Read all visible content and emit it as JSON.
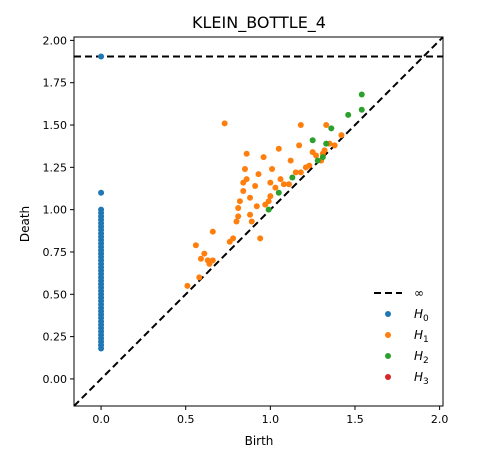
{
  "chart_data": {
    "type": "scatter",
    "title": "KLEIN_BOTTLE_4",
    "xlabel": "Birth",
    "ylabel": "Death",
    "xlim": [
      -0.16,
      2.02
    ],
    "ylim": [
      -0.16,
      2.02
    ],
    "xticks": [
      {
        "value": 0.0,
        "label": "0.0"
      },
      {
        "value": 0.5,
        "label": "0.5"
      },
      {
        "value": 1.0,
        "label": "1.0"
      },
      {
        "value": 1.5,
        "label": "1.5"
      },
      {
        "value": 2.0,
        "label": "2.0"
      }
    ],
    "yticks": [
      {
        "value": 0.0,
        "label": "0.00"
      },
      {
        "value": 0.25,
        "label": "0.25"
      },
      {
        "value": 0.5,
        "label": "0.50"
      },
      {
        "value": 0.75,
        "label": "0.75"
      },
      {
        "value": 1.0,
        "label": "1.00"
      },
      {
        "value": 1.25,
        "label": "1.25"
      },
      {
        "value": 1.5,
        "label": "1.50"
      },
      {
        "value": 1.75,
        "label": "1.75"
      },
      {
        "value": 2.0,
        "label": "2.00"
      }
    ],
    "infinity_line": {
      "y": 1.905,
      "color": "#000000"
    },
    "diagonal_color": "#000000",
    "grid": false,
    "legend_position": "bottom-right",
    "legend": [
      {
        "key": "inf",
        "label": "∞",
        "kind": "dashed-line",
        "color": "#000000"
      },
      {
        "key": "h0",
        "label_main": "H",
        "label_sub": "0",
        "kind": "dot",
        "color": "#1f77b4"
      },
      {
        "key": "h1",
        "label_main": "H",
        "label_sub": "1",
        "kind": "dot",
        "color": "#ff7f0e"
      },
      {
        "key": "h2",
        "label_main": "H",
        "label_sub": "2",
        "kind": "dot",
        "color": "#2ca02c"
      },
      {
        "key": "h3",
        "label_main": "H",
        "label_sub": "3",
        "kind": "dot",
        "color": "#d62728"
      }
    ],
    "series": [
      {
        "key": "h0",
        "color": "#1f77b4",
        "points": [
          [
            0,
            1.905
          ],
          [
            0,
            1.1
          ],
          [
            0,
            1.0
          ],
          [
            0,
            0.98
          ],
          [
            0,
            0.96
          ],
          [
            0,
            0.94
          ],
          [
            0,
            0.92
          ],
          [
            0,
            0.9
          ],
          [
            0,
            0.88
          ],
          [
            0,
            0.86
          ],
          [
            0,
            0.84
          ],
          [
            0,
            0.82
          ],
          [
            0,
            0.8
          ],
          [
            0,
            0.78
          ],
          [
            0,
            0.76
          ],
          [
            0,
            0.74
          ],
          [
            0,
            0.72
          ],
          [
            0,
            0.7
          ],
          [
            0,
            0.68
          ],
          [
            0,
            0.66
          ],
          [
            0,
            0.64
          ],
          [
            0,
            0.62
          ],
          [
            0,
            0.6
          ],
          [
            0,
            0.58
          ],
          [
            0,
            0.56
          ],
          [
            0,
            0.54
          ],
          [
            0,
            0.52
          ],
          [
            0,
            0.5
          ],
          [
            0,
            0.48
          ],
          [
            0,
            0.46
          ],
          [
            0,
            0.44
          ],
          [
            0,
            0.42
          ],
          [
            0,
            0.4
          ],
          [
            0,
            0.38
          ],
          [
            0,
            0.36
          ],
          [
            0,
            0.34
          ],
          [
            0,
            0.32
          ],
          [
            0,
            0.3
          ],
          [
            0,
            0.28
          ],
          [
            0,
            0.26
          ],
          [
            0,
            0.24
          ],
          [
            0,
            0.22
          ],
          [
            0,
            0.2
          ],
          [
            0,
            0.18
          ]
        ]
      },
      {
        "key": "h1",
        "color": "#ff7f0e",
        "points": [
          [
            0.51,
            0.55
          ],
          [
            0.58,
            0.6
          ],
          [
            0.59,
            0.71
          ],
          [
            0.56,
            0.79
          ],
          [
            0.63,
            0.7
          ],
          [
            0.66,
            0.7
          ],
          [
            0.61,
            0.74
          ],
          [
            0.64,
            0.68
          ],
          [
            0.66,
            0.87
          ],
          [
            0.73,
            1.51
          ],
          [
            0.76,
            0.81
          ],
          [
            0.78,
            0.83
          ],
          [
            0.8,
            0.93
          ],
          [
            0.81,
            0.96
          ],
          [
            0.81,
            1.01
          ],
          [
            0.82,
            1.05
          ],
          [
            0.84,
            1.11
          ],
          [
            0.84,
            1.16
          ],
          [
            0.86,
            1.18
          ],
          [
            0.85,
            1.24
          ],
          [
            0.86,
            1.33
          ],
          [
            0.88,
            0.97
          ],
          [
            0.88,
            1.07
          ],
          [
            0.89,
            0.93
          ],
          [
            0.91,
            1.14
          ],
          [
            0.93,
            1.21
          ],
          [
            0.92,
            1.02
          ],
          [
            0.94,
            0.83
          ],
          [
            0.97,
            1.03
          ],
          [
            0.96,
            1.31
          ],
          [
            0.99,
            1.05
          ],
          [
            1.0,
            1.08
          ],
          [
            1.0,
            1.16
          ],
          [
            1.01,
            1.24
          ],
          [
            1.03,
            1.13
          ],
          [
            1.05,
            1.36
          ],
          [
            1.06,
            1.18
          ],
          [
            1.08,
            1.15
          ],
          [
            1.11,
            1.15
          ],
          [
            1.12,
            1.29
          ],
          [
            1.15,
            1.22
          ],
          [
            1.17,
            1.38
          ],
          [
            1.18,
            1.5
          ],
          [
            1.18,
            1.22
          ],
          [
            1.21,
            1.25
          ],
          [
            1.23,
            1.26
          ],
          [
            1.25,
            1.34
          ],
          [
            1.27,
            1.32
          ],
          [
            1.3,
            1.29
          ],
          [
            1.31,
            1.33
          ],
          [
            1.32,
            1.35
          ],
          [
            1.33,
            1.5
          ],
          [
            1.35,
            1.39
          ],
          [
            1.38,
            1.38
          ],
          [
            1.42,
            1.44
          ]
        ]
      },
      {
        "key": "h2",
        "color": "#2ca02c",
        "points": [
          [
            0.99,
            1.0
          ],
          [
            1.05,
            1.1
          ],
          [
            1.13,
            1.19
          ],
          [
            1.25,
            1.41
          ],
          [
            1.28,
            1.29
          ],
          [
            1.31,
            1.31
          ],
          [
            1.33,
            1.39
          ],
          [
            1.36,
            1.48
          ],
          [
            1.46,
            1.56
          ],
          [
            1.54,
            1.59
          ],
          [
            1.54,
            1.68
          ]
        ]
      },
      {
        "key": "h3",
        "color": "#d62728",
        "points": []
      }
    ]
  }
}
